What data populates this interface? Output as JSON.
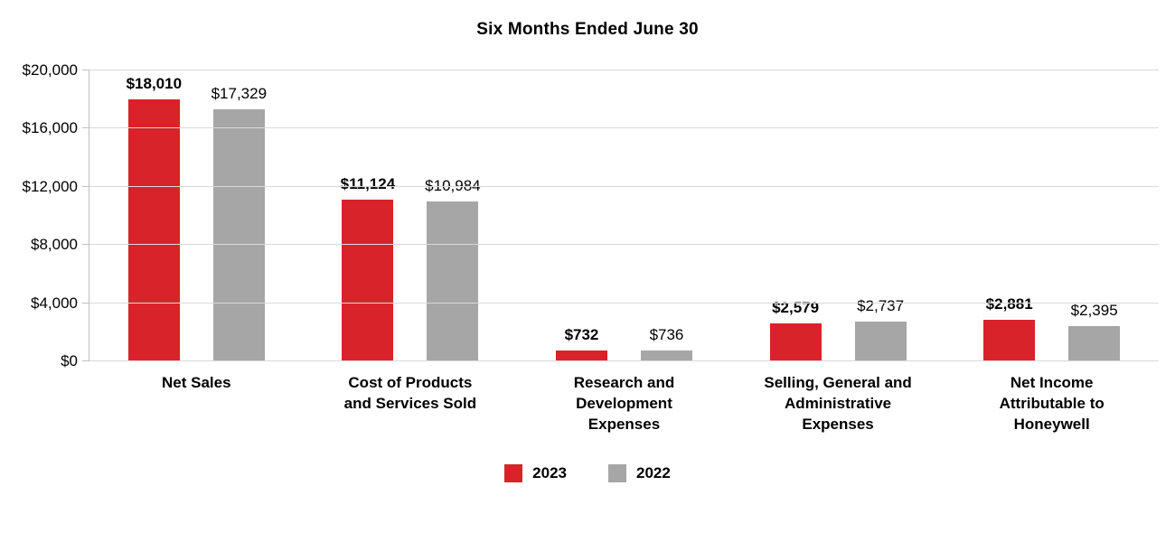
{
  "chart_data": {
    "type": "bar",
    "title": "Six Months Ended June 30",
    "categories": [
      "Net Sales",
      "Cost of Products and Services Sold",
      "Research and Development Expenses",
      "Selling, General and Administrative Expenses",
      "Net Income Attributable to Honeywell"
    ],
    "category_lines": [
      [
        "Net Sales"
      ],
      [
        "Cost of Products",
        "and Services Sold"
      ],
      [
        "Research and",
        "Development",
        "Expenses"
      ],
      [
        "Selling, General and",
        "Administrative",
        "Expenses"
      ],
      [
        "Net Income",
        "Attributable to",
        "Honeywell"
      ]
    ],
    "series": [
      {
        "name": "2023",
        "color": "#d8232a",
        "values": [
          18010,
          11124,
          732,
          2579,
          2881
        ],
        "labels": [
          "$18,010",
          "$11,124",
          "$732",
          "$2,579",
          "$2,881"
        ],
        "bold_labels": true
      },
      {
        "name": "2022",
        "color": "#a6a6a6",
        "values": [
          17329,
          10984,
          736,
          2737,
          2395
        ],
        "labels": [
          "$17,329",
          "$10,984",
          "$736",
          "$2,737",
          "$2,395"
        ],
        "bold_labels": false
      }
    ],
    "xlabel": "",
    "ylabel": "",
    "ylim": [
      0,
      20000
    ],
    "yticks": [
      {
        "value": 0,
        "label": "$0"
      },
      {
        "value": 4000,
        "label": "$4,000"
      },
      {
        "value": 8000,
        "label": "$8,000"
      },
      {
        "value": 12000,
        "label": "$12,000"
      },
      {
        "value": 16000,
        "label": "$16,000"
      },
      {
        "value": 20000,
        "label": "$20,000"
      }
    ],
    "grid": "horizontal",
    "legend": {
      "position": "bottom",
      "entries": [
        "2023",
        "2022"
      ]
    },
    "colors": {
      "gridline": "#d9d9d9",
      "axis": "#bfbfbf",
      "text": "#000000",
      "background": "#ffffff"
    }
  }
}
